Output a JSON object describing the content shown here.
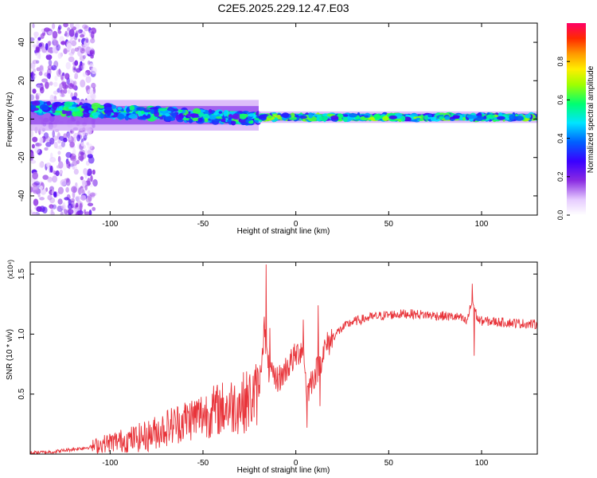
{
  "title": "C2E5.2025.229.12.47.E03",
  "chart_data": [
    {
      "type": "heatmap",
      "xlabel": "Height of straight line (km)",
      "ylabel": "Frequency (Hz)",
      "xlim": [
        -143,
        130
      ],
      "ylim": [
        -50,
        50
      ],
      "xticks": [
        -100,
        -50,
        0,
        50,
        100
      ],
      "yticks": [
        -40,
        -20,
        0,
        20,
        40
      ],
      "colorbar": {
        "label": "Normalized spectral amplitude",
        "range": [
          0,
          1
        ],
        "ticks": [
          0.0,
          0.2,
          0.4,
          0.6,
          0.8
        ]
      },
      "features": [
        {
          "name": "scattered weak noise",
          "x_range": [
            -143,
            -108
          ],
          "y_range": [
            -50,
            50
          ],
          "amplitude": 0.15
        },
        {
          "name": "noisy band",
          "x_range": [
            -143,
            -20
          ],
          "center_hz": 2,
          "width_hz": 8,
          "amplitude": 0.45
        },
        {
          "name": "narrow line",
          "x_range": [
            -20,
            130
          ],
          "center_hz": 1,
          "width_hz": 3,
          "amplitude": 0.5
        },
        {
          "name": "peak cluster",
          "x_range": [
            -20,
            25
          ],
          "center_hz": 1,
          "amplitude": 0.95
        }
      ],
      "grid": false
    },
    {
      "type": "line",
      "xlabel": "Height of straight line (km)",
      "ylabel": "SNR (10 * v/v)",
      "y_multiplier": "(x10⁴)",
      "xlim": [
        -143,
        130
      ],
      "ylim": [
        0,
        1.6
      ],
      "xticks": [
        -100,
        -50,
        0,
        50,
        100
      ],
      "yticks": [
        0.5,
        1.0,
        1.5
      ],
      "grid": false,
      "color": "#e8343a",
      "x": [
        -143,
        -130,
        -120,
        -110,
        -100,
        -90,
        -80,
        -70,
        -60,
        -50,
        -40,
        -30,
        -25,
        -20,
        -17,
        -15,
        -12,
        -8,
        -5,
        0,
        4,
        6,
        8,
        12,
        15,
        20,
        25,
        30,
        35,
        40,
        50,
        60,
        70,
        80,
        88,
        92,
        95,
        98,
        100,
        110,
        120,
        130
      ],
      "y": [
        0.01,
        0.02,
        0.04,
        0.06,
        0.1,
        0.12,
        0.15,
        0.22,
        0.28,
        0.33,
        0.38,
        0.42,
        0.45,
        0.52,
        1.05,
        0.72,
        0.62,
        0.64,
        0.72,
        0.82,
        0.9,
        0.5,
        0.6,
        0.72,
        0.86,
        0.98,
        1.05,
        1.1,
        1.12,
        1.14,
        1.16,
        1.17,
        1.16,
        1.15,
        1.14,
        1.1,
        1.28,
        1.12,
        1.11,
        1.1,
        1.09,
        1.08
      ],
      "spikes": [
        {
          "x": -16,
          "y": 1.58
        },
        {
          "x": -14,
          "y": 1.05
        },
        {
          "x": 4,
          "y": 1.12
        },
        {
          "x": 6,
          "y": 0.22
        },
        {
          "x": 12,
          "y": 1.24
        },
        {
          "x": 13,
          "y": 0.4
        },
        {
          "x": 95,
          "y": 1.42
        },
        {
          "x": 96,
          "y": 0.82
        }
      ]
    }
  ]
}
